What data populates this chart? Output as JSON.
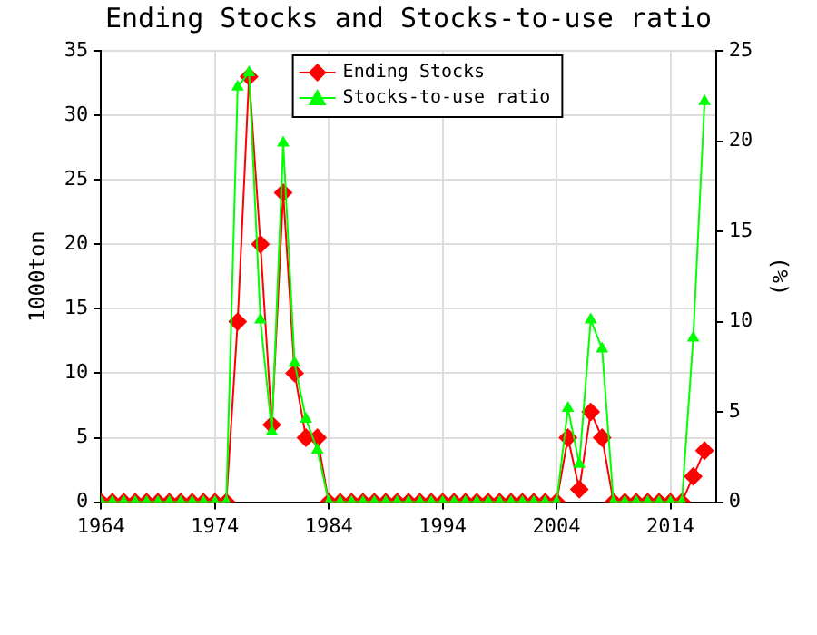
{
  "chart_data": {
    "type": "line",
    "title": "Ending Stocks and Stocks-to-use ratio",
    "ylabel": "1000ton",
    "y2label": "(%)",
    "x": [
      1964,
      1965,
      1966,
      1967,
      1968,
      1969,
      1970,
      1971,
      1972,
      1973,
      1974,
      1975,
      1976,
      1977,
      1978,
      1979,
      1980,
      1981,
      1982,
      1983,
      1984,
      1985,
      1986,
      1987,
      1988,
      1989,
      1990,
      1991,
      1992,
      1993,
      1994,
      1995,
      1996,
      1997,
      1998,
      1999,
      2000,
      2001,
      2002,
      2003,
      2004,
      2005,
      2006,
      2007,
      2008,
      2009,
      2010,
      2011,
      2012,
      2013,
      2014,
      2015,
      2016,
      2017
    ],
    "series": [
      {
        "name": "Ending Stocks",
        "color": "#ff0000",
        "marker": "diamond",
        "axis": "y",
        "values": [
          0,
          0,
          0,
          0,
          0,
          0,
          0,
          0,
          0,
          0,
          0,
          0,
          14,
          33,
          20,
          6,
          24,
          10,
          5,
          5,
          0,
          0,
          0,
          0,
          0,
          0,
          0,
          0,
          0,
          0,
          0,
          0,
          0,
          0,
          0,
          0,
          0,
          0,
          0,
          0,
          0,
          5,
          1,
          7,
          5,
          0,
          0,
          0,
          0,
          0,
          0,
          0,
          2,
          4
        ]
      },
      {
        "name": "Stocks-to-use ratio",
        "color": "#00ff00",
        "marker": "triangle",
        "axis": "y2",
        "values": [
          0,
          0,
          0,
          0,
          0,
          0,
          0,
          0,
          0,
          0,
          0,
          0,
          23.0,
          23.8,
          10.1,
          3.9,
          19.9,
          7.7,
          4.6,
          2.9,
          0,
          0,
          0,
          0,
          0,
          0,
          0,
          0,
          0,
          0,
          0,
          0,
          0,
          0,
          0,
          0,
          0,
          0,
          0,
          0,
          0,
          5.2,
          2.1,
          10.1,
          8.5,
          0,
          0,
          0,
          0,
          0,
          0,
          0,
          9.1,
          22.2
        ]
      }
    ],
    "xlim": [
      1964,
      2018
    ],
    "xticks": [
      1964,
      1974,
      1984,
      1994,
      2004,
      2014
    ],
    "ylim": [
      0,
      35
    ],
    "yticks": [
      0,
      5,
      10,
      15,
      20,
      25,
      30,
      35
    ],
    "y2lim": [
      0,
      25
    ],
    "y2ticks": [
      0,
      5,
      10,
      15,
      20,
      25
    ],
    "grid": true,
    "legend": "top"
  }
}
